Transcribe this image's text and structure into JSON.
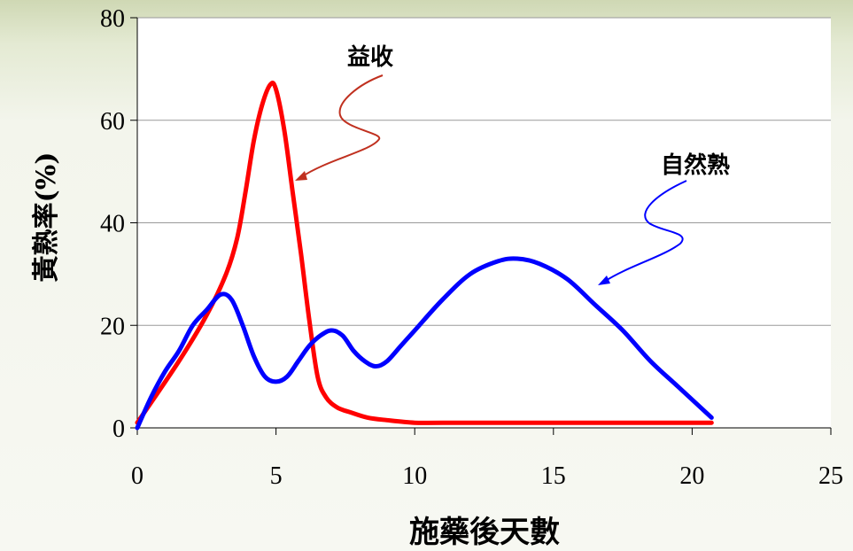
{
  "chart_data": {
    "type": "line",
    "title": "",
    "xlabel": "施藥後天數",
    "ylabel": "黃熟率(%)",
    "xlim": [
      0,
      25
    ],
    "ylim": [
      0,
      80
    ],
    "xticks": [
      "0",
      "5",
      "10",
      "15",
      "20",
      "25"
    ],
    "yticks": [
      "0",
      "20",
      "40",
      "60",
      "80"
    ],
    "grid": "horizontal",
    "legend": "none",
    "series": [
      {
        "name": "益收",
        "color": "#ff0000",
        "x": [
          0,
          1.5,
          2.5,
          3.2,
          3.6,
          3.9,
          4.2,
          4.5,
          4.8,
          5.0,
          5.3,
          5.6,
          5.9,
          6.2,
          6.5,
          6.8,
          7.2,
          7.7,
          8.3,
          9.0,
          10.0,
          11.0,
          15.0,
          20.7
        ],
        "y": [
          1,
          13,
          22,
          30,
          37,
          46,
          56,
          63,
          67,
          66,
          58,
          46,
          34,
          21,
          10,
          6,
          4,
          3,
          2,
          1.5,
          1,
          1,
          1,
          1
        ]
      },
      {
        "name": "自然熟",
        "color": "#0000ff",
        "x": [
          0,
          0.5,
          1.0,
          1.5,
          2.0,
          2.5,
          3.0,
          3.4,
          3.8,
          4.2,
          4.6,
          5.0,
          5.4,
          5.8,
          6.2,
          6.6,
          7.0,
          7.4,
          7.8,
          8.2,
          8.6,
          9.0,
          9.5,
          10.0,
          11.0,
          12.0,
          13.0,
          13.7,
          14.5,
          15.5,
          16.5,
          17.5,
          18.5,
          19.5,
          20.7
        ],
        "y": [
          0,
          6,
          11,
          15,
          20,
          23,
          26,
          25,
          20,
          14,
          10,
          9,
          10,
          13,
          16,
          18,
          19,
          18,
          15,
          13,
          12,
          13,
          16,
          19,
          25,
          30,
          32.5,
          33,
          32,
          29,
          24,
          19,
          13,
          8,
          2
        ]
      }
    ],
    "annotations": [
      {
        "text": "益收",
        "series": "益收"
      },
      {
        "text": "自然熟",
        "series": "自然熟"
      }
    ]
  }
}
